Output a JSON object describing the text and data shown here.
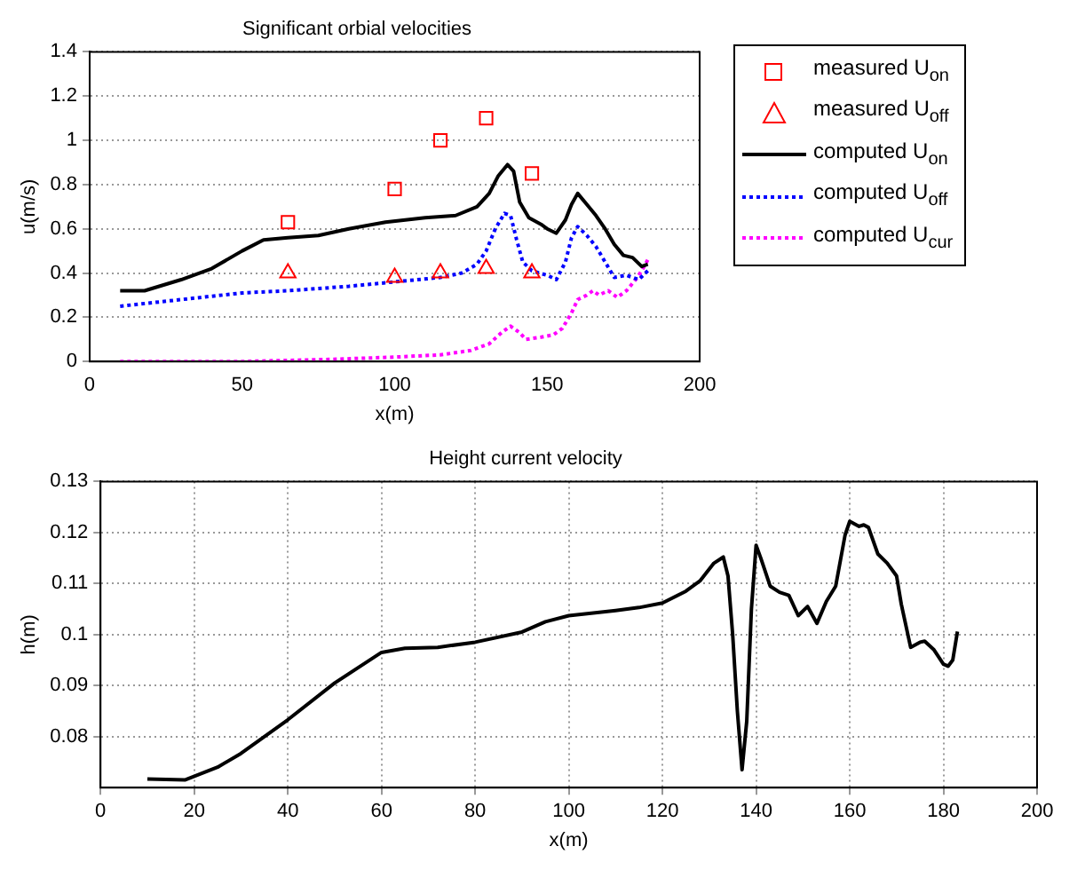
{
  "chart_data": [
    {
      "type": "line",
      "title": "Significant orbial velocities",
      "xlabel": "x(m)",
      "ylabel": "u(m/s)",
      "xlim": [
        0,
        200
      ],
      "xticks": [
        0,
        50,
        100,
        150,
        200
      ],
      "ylim": [
        0,
        1.4
      ],
      "yticks": [
        0,
        0.2,
        0.4,
        0.6,
        0.8,
        1,
        1.2,
        1.4
      ],
      "grid": "y",
      "legend": "right",
      "series": [
        {
          "name": "measured U$_{on}$",
          "type": "scatter",
          "marker": "square",
          "color": "#ff0000",
          "x": [
            65,
            100,
            115,
            130,
            145
          ],
          "values": [
            0.63,
            0.78,
            1.0,
            1.1,
            0.85
          ]
        },
        {
          "name": "measured U$_{off}$",
          "type": "scatter",
          "marker": "triangle",
          "color": "#ff0000",
          "x": [
            65,
            100,
            115,
            130,
            145
          ],
          "values": [
            0.4,
            0.38,
            0.4,
            0.42,
            0.4
          ]
        },
        {
          "name": "computed U$_{on}$",
          "type": "line",
          "line_style": "solid",
          "color": "#000000",
          "x": [
            10,
            18,
            30,
            40,
            50,
            57,
            65,
            75,
            85,
            97,
            110,
            120,
            127,
            131,
            134,
            137,
            139,
            141,
            144,
            148,
            150,
            153,
            156,
            158,
            160,
            163,
            166,
            169,
            172,
            175,
            178,
            181,
            183
          ],
          "values": [
            0.32,
            0.32,
            0.37,
            0.42,
            0.5,
            0.55,
            0.56,
            0.57,
            0.6,
            0.63,
            0.65,
            0.66,
            0.7,
            0.76,
            0.84,
            0.89,
            0.86,
            0.72,
            0.65,
            0.62,
            0.6,
            0.58,
            0.64,
            0.71,
            0.76,
            0.71,
            0.66,
            0.6,
            0.53,
            0.48,
            0.47,
            0.43,
            0.44
          ]
        },
        {
          "name": "computed U$_{off}$",
          "type": "line",
          "line_style": "dotted",
          "color": "#0000ff",
          "x": [
            10,
            30,
            50,
            65,
            85,
            100,
            115,
            122,
            127,
            130,
            133,
            136,
            138,
            140,
            142,
            145,
            150,
            153,
            156,
            158,
            160,
            163,
            166,
            169,
            172,
            176,
            180,
            183
          ],
          "values": [
            0.25,
            0.28,
            0.31,
            0.32,
            0.34,
            0.36,
            0.38,
            0.4,
            0.44,
            0.5,
            0.6,
            0.67,
            0.66,
            0.55,
            0.45,
            0.41,
            0.39,
            0.37,
            0.45,
            0.56,
            0.61,
            0.57,
            0.52,
            0.45,
            0.38,
            0.39,
            0.37,
            0.41
          ]
        },
        {
          "name": "computed U$_{cur}$",
          "type": "line",
          "line_style": "dotted",
          "color": "#ff00ff",
          "x": [
            10,
            50,
            80,
            100,
            115,
            125,
            131,
            135,
            138,
            141,
            143,
            148,
            152,
            155,
            158,
            160,
            163,
            165,
            167,
            170,
            173,
            176,
            179,
            181,
            183
          ],
          "values": [
            0.0,
            0.0,
            0.01,
            0.02,
            0.03,
            0.05,
            0.08,
            0.13,
            0.16,
            0.13,
            0.1,
            0.11,
            0.12,
            0.15,
            0.22,
            0.28,
            0.3,
            0.32,
            0.3,
            0.32,
            0.29,
            0.32,
            0.37,
            0.41,
            0.46
          ]
        }
      ]
    },
    {
      "type": "line",
      "title": "Height current velocity",
      "xlabel": "x(m)",
      "ylabel": "h(m)",
      "xlim": [
        0,
        200
      ],
      "xticks": [
        0,
        20,
        40,
        60,
        80,
        100,
        120,
        140,
        160,
        180,
        200
      ],
      "ylim": [
        0.07,
        0.13
      ],
      "yticks": [
        0.08,
        0.09,
        0.1,
        0.11,
        0.12,
        0.13
      ],
      "grid": true,
      "series": [
        {
          "type": "line",
          "line_style": "solid",
          "color": "#000000",
          "x": [
            10,
            18,
            25,
            30,
            40,
            50,
            55,
            60,
            65,
            72,
            80,
            90,
            95,
            100,
            110,
            115,
            120,
            125,
            128,
            131,
            133,
            134,
            135,
            136,
            137,
            138,
            139,
            140,
            141,
            143,
            145,
            147,
            149,
            151,
            153,
            155,
            157,
            159,
            160,
            162,
            163,
            164,
            166,
            168,
            170,
            171,
            173,
            175,
            176,
            178,
            180,
            181,
            182,
            183
          ],
          "values": [
            0.0717,
            0.0715,
            0.074,
            0.0767,
            0.0833,
            0.0905,
            0.0935,
            0.0965,
            0.0973,
            0.0975,
            0.0985,
            0.1005,
            0.1025,
            0.1037,
            0.1047,
            0.1053,
            0.1062,
            0.1085,
            0.1105,
            0.114,
            0.1152,
            0.1115,
            0.1,
            0.085,
            0.0735,
            0.083,
            0.105,
            0.1175,
            0.115,
            0.1095,
            0.1083,
            0.1077,
            0.1037,
            0.1055,
            0.1022,
            0.1065,
            0.1095,
            0.1195,
            0.1222,
            0.1212,
            0.1215,
            0.121,
            0.1158,
            0.114,
            0.1115,
            0.106,
            0.0975,
            0.0985,
            0.0987,
            0.097,
            0.0942,
            0.0938,
            0.095,
            0.1006
          ]
        }
      ]
    }
  ]
}
